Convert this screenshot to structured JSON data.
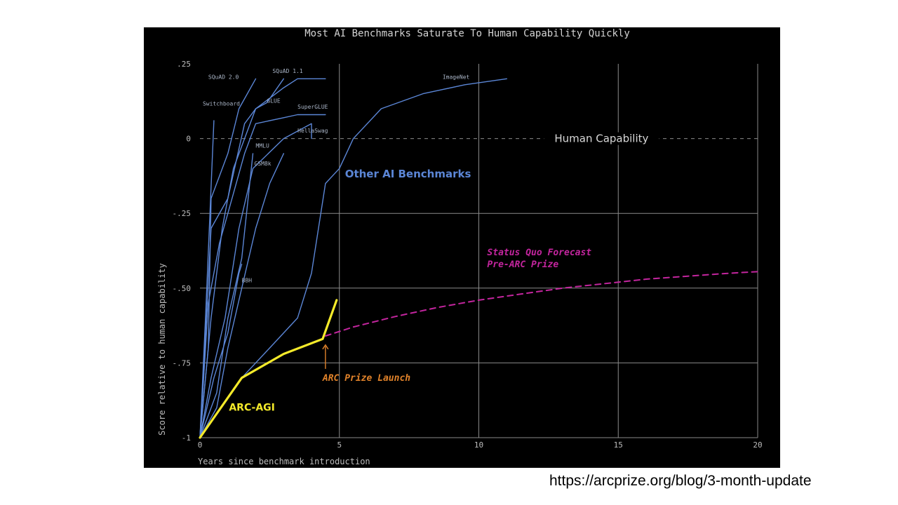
{
  "source_url": "https://arcprize.org/blog/3-month-update",
  "colors": {
    "background": "#000000",
    "grid": "#8a8a8a",
    "text": "#cfcfcf",
    "benchmarks": "#5b86d6",
    "arc_agi": "#f4ea2a",
    "forecast": "#c3259e",
    "arc_launch": "#e0822a"
  },
  "chart_data": {
    "type": "line",
    "title": "Most AI Benchmarks Saturate To Human Capability Quickly",
    "xlabel": "Years since benchmark introduction",
    "ylabel": "Score relative to human capability",
    "xlim": [
      0,
      20
    ],
    "ylim": [
      -1,
      0.25
    ],
    "xticks": [
      0,
      5,
      10,
      15,
      20
    ],
    "xtick_labels": [
      "0",
      "5",
      "10",
      "15",
      "20"
    ],
    "yticks": [
      0.25,
      0,
      -0.25,
      -0.5,
      -0.75,
      -1
    ],
    "ytick_labels": [
      ".25",
      "0",
      "-.25",
      "-.50",
      "-.75",
      "-1"
    ],
    "grid": true,
    "human_capability": {
      "y": 0,
      "label": "Human Capability"
    },
    "series": [
      {
        "name": "SQuAD 2.0",
        "group": "benchmark",
        "label_at": [
          0.3,
          0.2
        ],
        "points": [
          [
            0,
            -1
          ],
          [
            0.3,
            -0.7
          ],
          [
            0.4,
            -0.2
          ],
          [
            1,
            -0.05
          ],
          [
            1.4,
            0.1
          ],
          [
            2,
            0.2
          ]
        ]
      },
      {
        "name": "SQuAD 1.1",
        "group": "benchmark",
        "label_at": [
          2.6,
          0.22
        ],
        "points": [
          [
            0,
            -1
          ],
          [
            0.4,
            -0.3
          ],
          [
            1,
            -0.2
          ],
          [
            1.6,
            0.05
          ],
          [
            2,
            0.1
          ],
          [
            3,
            0.17
          ],
          [
            3.5,
            0.2
          ],
          [
            4.5,
            0.2
          ]
        ]
      },
      {
        "name": "Switchboard",
        "group": "benchmark",
        "label_at": [
          0.1,
          0.11
        ],
        "points": [
          [
            0,
            -1
          ],
          [
            0.2,
            -0.6
          ],
          [
            0.5,
            0.06
          ]
        ]
      },
      {
        "name": "GLUE",
        "group": "benchmark",
        "label_at": [
          2.4,
          0.12
        ],
        "points": [
          [
            0,
            -1
          ],
          [
            0.4,
            -0.6
          ],
          [
            0.8,
            -0.3
          ],
          [
            1.2,
            -0.1
          ],
          [
            1.6,
            0
          ],
          [
            2,
            0.1
          ],
          [
            2.4,
            0.12
          ],
          [
            3,
            0.2
          ]
        ]
      },
      {
        "name": "SuperGLUE",
        "group": "benchmark",
        "label_at": [
          3.5,
          0.1
        ],
        "points": [
          [
            0,
            -1
          ],
          [
            0.3,
            -0.55
          ],
          [
            0.7,
            -0.35
          ],
          [
            1,
            -0.25
          ],
          [
            1.6,
            -0.05
          ],
          [
            2,
            0.05
          ],
          [
            3,
            0.07
          ],
          [
            3.5,
            0.08
          ],
          [
            4.5,
            0.08
          ]
        ]
      },
      {
        "name": "HellaSwag",
        "group": "benchmark",
        "label_at": [
          3.5,
          0.02
        ],
        "points": [
          [
            0,
            -1
          ],
          [
            0.4,
            -0.8
          ],
          [
            0.9,
            -0.6
          ],
          [
            1.4,
            -0.3
          ],
          [
            1.9,
            -0.1
          ],
          [
            3,
            0
          ],
          [
            4,
            0.05
          ],
          [
            4,
            0
          ]
        ]
      },
      {
        "name": "MMLU",
        "group": "benchmark",
        "label_at": [
          2,
          -0.03
        ],
        "points": [
          [
            0,
            -1
          ],
          [
            0.6,
            -0.9
          ],
          [
            1,
            -0.7
          ],
          [
            1.5,
            -0.5
          ],
          [
            2,
            -0.3
          ],
          [
            2.5,
            -0.15
          ],
          [
            3,
            -0.05
          ]
        ]
      },
      {
        "name": "GSM8k",
        "group": "benchmark",
        "label_at": [
          1.95,
          -0.09
        ],
        "points": [
          [
            0,
            -1
          ],
          [
            0.6,
            -0.85
          ],
          [
            1,
            -0.6
          ],
          [
            1.5,
            -0.4
          ],
          [
            1.9,
            -0.05
          ]
        ]
      },
      {
        "name": "BBH",
        "group": "benchmark",
        "label_at": [
          1.5,
          -0.48
        ],
        "points": [
          [
            0,
            -1
          ],
          [
            0.5,
            -0.8
          ],
          [
            1,
            -0.65
          ],
          [
            1.4,
            -0.45
          ],
          [
            1.5,
            -0.42
          ]
        ]
      },
      {
        "name": "ImageNet",
        "group": "benchmark",
        "label_at": [
          8.7,
          0.2
        ],
        "points": [
          [
            1.5,
            -0.8
          ],
          [
            2.5,
            -0.7
          ],
          [
            3.5,
            -0.6
          ],
          [
            4,
            -0.45
          ],
          [
            4.5,
            -0.15
          ],
          [
            5,
            -0.1
          ],
          [
            5.5,
            0
          ],
          [
            6.5,
            0.1
          ],
          [
            8,
            0.15
          ],
          [
            9.5,
            0.18
          ],
          [
            11,
            0.2
          ]
        ]
      },
      {
        "name": "ARC-AGI",
        "group": "arc",
        "label_at": [
          1.04,
          -0.91
        ],
        "points": [
          [
            0,
            -1
          ],
          [
            1.5,
            -0.8
          ],
          [
            3,
            -0.72
          ],
          [
            4.4,
            -0.67
          ],
          [
            4.9,
            -0.54
          ]
        ]
      },
      {
        "name": "Status Quo Forecast Pre-ARC Prize",
        "group": "forecast",
        "points": [
          [
            4.5,
            -0.66
          ],
          [
            5.5,
            -0.63
          ],
          [
            7,
            -0.595
          ],
          [
            8.5,
            -0.565
          ],
          [
            10,
            -0.54
          ],
          [
            11.5,
            -0.52
          ],
          [
            13,
            -0.5
          ],
          [
            14.5,
            -0.485
          ],
          [
            16,
            -0.47
          ],
          [
            17.5,
            -0.46
          ],
          [
            19,
            -0.45
          ],
          [
            20,
            -0.445
          ]
        ]
      }
    ],
    "annotations": [
      {
        "key": "other",
        "text": "Other AI Benchmarks",
        "at": [
          5.2,
          -0.13
        ]
      },
      {
        "key": "forecast_1",
        "text": "Status Quo Forecast",
        "at": [
          10.3,
          -0.39
        ]
      },
      {
        "key": "forecast_2",
        "text": "Pre-ARC Prize",
        "at": [
          10.3,
          -0.43
        ]
      },
      {
        "key": "arc_launch",
        "text": "ARC Prize Launch",
        "at": [
          4.4,
          -0.81
        ]
      }
    ],
    "arrow": {
      "from": [
        4.5,
        -0.77
      ],
      "to": [
        4.5,
        -0.69
      ]
    }
  }
}
